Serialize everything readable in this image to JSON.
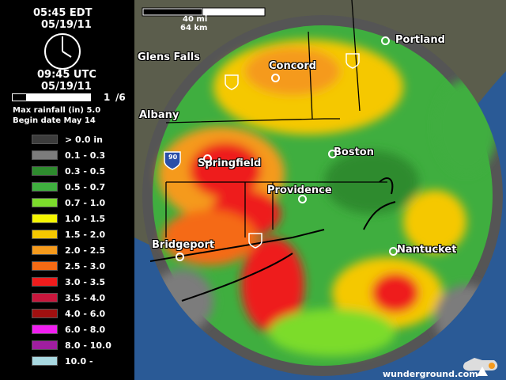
{
  "clock": {
    "local_time": "05:45 EDT",
    "local_date": "05/19/11",
    "utc_time": "09:45 UTC",
    "utc_date": "05/19/11"
  },
  "progress": {
    "frame": "1",
    "total": "/6",
    "value": 0.17
  },
  "info": {
    "max_rainfall": "Max rainfall (in) 5.0",
    "begin_date": "Begin date May 14"
  },
  "legend": [
    {
      "label": "> 0.0 in",
      "color": "#3c3c3c"
    },
    {
      "label": "0.1 - 0.3",
      "color": "#7c7c7c"
    },
    {
      "label": "0.3 - 0.5",
      "color": "#2e8b2e"
    },
    {
      "label": "0.5 - 0.7",
      "color": "#3fae3f"
    },
    {
      "label": "0.7 - 1.0",
      "color": "#7cdc2c"
    },
    {
      "label": "1.0 - 1.5",
      "color": "#f5f500"
    },
    {
      "label": "1.5 - 2.0",
      "color": "#f5c800"
    },
    {
      "label": "2.0 - 2.5",
      "color": "#f59a1c"
    },
    {
      "label": "2.5 - 3.0",
      "color": "#f56a14"
    },
    {
      "label": "3.0 - 3.5",
      "color": "#ee1c1c"
    },
    {
      "label": "3.5 - 4.0",
      "color": "#c8163c"
    },
    {
      "label": "4.0 - 6.0",
      "color": "#a01010"
    },
    {
      "label": "6.0 - 8.0",
      "color": "#f01ef0"
    },
    {
      "label": "8.0 - 10.0",
      "color": "#a01ea0"
    },
    {
      "label": "10.0 -",
      "color": "#a8d8e0"
    }
  ],
  "scale": {
    "miles": "40 mi",
    "km": "64 km"
  },
  "cities": {
    "glens_falls": "Glens Falls",
    "portland": "Portland",
    "concord": "Concord",
    "albany": "Albany",
    "springfield": "Springfield",
    "boston": "Boston",
    "providence": "Providence",
    "bridgeport": "Bridgeport",
    "nantucket": "Nantucket"
  },
  "shields": {
    "i90": "90"
  },
  "credit": {
    "text": "wunderground.com"
  }
}
